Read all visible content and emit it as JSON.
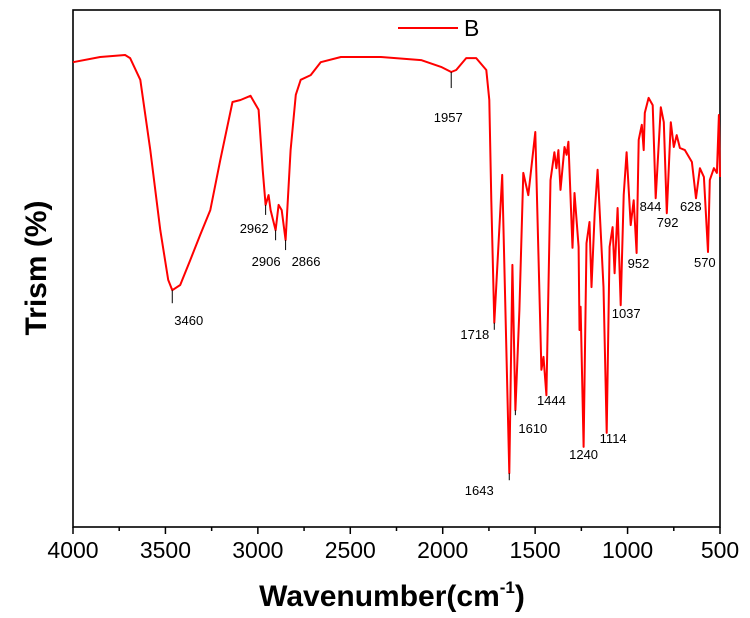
{
  "chart_data": {
    "type": "line",
    "title": "",
    "xlabel": "Wavenumber(cm",
    "xlabel_sup": "-1",
    "xlabel_close": ")",
    "ylabel": "Trism (%)",
    "xlim": [
      4000,
      500
    ],
    "x_reversed": true,
    "ylim": [
      0,
      100
    ],
    "y_ticks_shown": false,
    "grid": false,
    "legend_placement": "top-center",
    "x_ticks": [
      4000,
      3500,
      3000,
      2500,
      2000,
      1500,
      1000,
      500
    ],
    "x_tick_labels": [
      "4000",
      "3500",
      "3000",
      "2500",
      "2000",
      "1500",
      "1000",
      "500"
    ],
    "series": [
      {
        "name": "B",
        "color": "#ff0000",
        "points": [
          [
            4000,
            89.9
          ],
          [
            3853,
            90.9
          ],
          [
            3718,
            91.3
          ],
          [
            3691,
            90.7
          ],
          [
            3636,
            86.5
          ],
          [
            3582,
            72.9
          ],
          [
            3528,
            57.4
          ],
          [
            3485,
            47.8
          ],
          [
            3463,
            45.8
          ],
          [
            3420,
            46.8
          ],
          [
            3366,
            51.6
          ],
          [
            3312,
            56.5
          ],
          [
            3257,
            61.3
          ],
          [
            3203,
            71.0
          ],
          [
            3137,
            82.2
          ],
          [
            3094,
            82.6
          ],
          [
            3040,
            83.4
          ],
          [
            2996,
            80.7
          ],
          [
            2974,
            69.1
          ],
          [
            2958,
            62.3
          ],
          [
            2942,
            64.2
          ],
          [
            2931,
            61.3
          ],
          [
            2904,
            57.4
          ],
          [
            2888,
            62.3
          ],
          [
            2871,
            61.3
          ],
          [
            2850,
            55.5
          ],
          [
            2823,
            72.9
          ],
          [
            2795,
            83.6
          ],
          [
            2768,
            86.5
          ],
          [
            2714,
            87.4
          ],
          [
            2660,
            89.9
          ],
          [
            2551,
            90.9
          ],
          [
            2334,
            90.9
          ],
          [
            2117,
            90.3
          ],
          [
            2009,
            89.0
          ],
          [
            1954,
            88.0
          ],
          [
            1927,
            88.4
          ],
          [
            1873,
            90.7
          ],
          [
            1819,
            90.7
          ],
          [
            1764,
            88.4
          ],
          [
            1748,
            82.6
          ],
          [
            1737,
            63.2
          ],
          [
            1721,
            39.5
          ],
          [
            1678,
            68.1
          ],
          [
            1640,
            10.4
          ],
          [
            1623,
            50.7
          ],
          [
            1607,
            22.6
          ],
          [
            1585,
            42.0
          ],
          [
            1564,
            68.5
          ],
          [
            1537,
            64.2
          ],
          [
            1499,
            76.4
          ],
          [
            1466,
            30.4
          ],
          [
            1455,
            32.9
          ],
          [
            1439,
            25.5
          ],
          [
            1417,
            67.1
          ],
          [
            1396,
            72.5
          ],
          [
            1385,
            69.4
          ],
          [
            1374,
            72.9
          ],
          [
            1363,
            65.2
          ],
          [
            1341,
            73.5
          ],
          [
            1330,
            72.0
          ],
          [
            1320,
            74.5
          ],
          [
            1298,
            54.0
          ],
          [
            1287,
            64.6
          ],
          [
            1265,
            54.2
          ],
          [
            1260,
            38.1
          ],
          [
            1254,
            42.6
          ],
          [
            1238,
            15.5
          ],
          [
            1222,
            54.9
          ],
          [
            1206,
            59.0
          ],
          [
            1195,
            46.4
          ],
          [
            1178,
            60.7
          ],
          [
            1162,
            69.1
          ],
          [
            1130,
            46.4
          ],
          [
            1113,
            18.2
          ],
          [
            1097,
            54.2
          ],
          [
            1081,
            58.0
          ],
          [
            1070,
            49.1
          ],
          [
            1054,
            61.7
          ],
          [
            1037,
            42.9
          ],
          [
            1021,
            64.2
          ],
          [
            1005,
            72.5
          ],
          [
            983,
            58.4
          ],
          [
            967,
            63.2
          ],
          [
            951,
            53.0
          ],
          [
            940,
            74.9
          ],
          [
            923,
            77.8
          ],
          [
            913,
            72.9
          ],
          [
            907,
            80.1
          ],
          [
            886,
            83.0
          ],
          [
            864,
            81.6
          ],
          [
            848,
            63.6
          ],
          [
            820,
            81.2
          ],
          [
            804,
            78.3
          ],
          [
            788,
            60.7
          ],
          [
            766,
            78.3
          ],
          [
            750,
            73.5
          ],
          [
            734,
            75.8
          ],
          [
            717,
            73.3
          ],
          [
            690,
            72.9
          ],
          [
            652,
            70.6
          ],
          [
            630,
            63.6
          ],
          [
            609,
            69.4
          ],
          [
            587,
            67.7
          ],
          [
            565,
            53.2
          ],
          [
            555,
            67.1
          ],
          [
            533,
            69.4
          ],
          [
            517,
            68.5
          ],
          [
            506,
            79.7
          ],
          [
            500,
            67.7
          ]
        ]
      }
    ],
    "annotations": [
      {
        "text": "3460",
        "x": 3463,
        "y": 45.8
      },
      {
        "text": "2962",
        "x": 2958,
        "y": 62.3
      },
      {
        "text": "2906",
        "x": 2904,
        "y": 57.4
      },
      {
        "text": "2866",
        "x": 2850,
        "y": 55.5
      },
      {
        "text": "1957",
        "x": 1954,
        "y": 88.0
      },
      {
        "text": "1718",
        "x": 1721,
        "y": 39.5
      },
      {
        "text": "1643",
        "x": 1640,
        "y": 10.4
      },
      {
        "text": "1610",
        "x": 1607,
        "y": 22.6
      },
      {
        "text": "1444",
        "x": 1439,
        "y": 25.5
      },
      {
        "text": "1240",
        "x": 1238,
        "y": 15.5
      },
      {
        "text": "1114",
        "x": 1113,
        "y": 18.2
      },
      {
        "text": "1037",
        "x": 1037,
        "y": 42.9
      },
      {
        "text": "952",
        "x": 951,
        "y": 53.0
      },
      {
        "text": "844",
        "x": 848,
        "y": 63.6
      },
      {
        "text": "792",
        "x": 788,
        "y": 60.7
      },
      {
        "text": "628",
        "x": 630,
        "y": 63.6
      },
      {
        "text": "570",
        "x": 565,
        "y": 53.2
      }
    ]
  }
}
